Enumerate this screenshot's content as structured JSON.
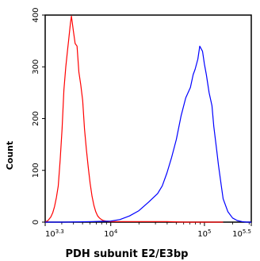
{
  "chart_data": {
    "type": "line",
    "title": "",
    "xlabel": "PDH subunit E2/E3bp",
    "ylabel": "Count",
    "xscale": "log",
    "xlim": [
      3.3,
      5.5
    ],
    "ylim": [
      0,
      400
    ],
    "grid": false,
    "y_ticks": [
      {
        "value": 0,
        "label": "0"
      },
      {
        "value": 100,
        "label": "100"
      },
      {
        "value": 200,
        "label": "200"
      },
      {
        "value": 300,
        "label": "300"
      },
      {
        "value": 400,
        "label": "400"
      }
    ],
    "x_ticks": [
      {
        "value": 3.3,
        "base": "10",
        "exp": "3.3"
      },
      {
        "value": 4,
        "base": "10",
        "exp": "4"
      },
      {
        "value": 5,
        "base": "10",
        "exp": "5"
      },
      {
        "value": 5.5,
        "base": "10",
        "exp": "5.5"
      }
    ],
    "series": [
      {
        "name": "",
        "color": "#ff0000",
        "x": [
          3.3,
          3.33,
          3.36,
          3.38,
          3.4,
          3.42,
          3.44,
          3.46,
          3.48,
          3.5,
          3.52,
          3.54,
          3.55,
          3.57,
          3.58,
          3.6,
          3.62,
          3.64,
          3.66,
          3.68,
          3.7,
          3.72,
          3.74,
          3.76,
          3.78,
          3.8,
          3.82,
          3.84,
          3.86,
          3.88,
          3.9,
          3.92,
          3.95,
          4.0,
          4.05,
          4.1,
          4.2,
          4.4,
          4.6,
          4.8,
          5.0,
          5.1,
          5.2
        ],
        "y": [
          0,
          3,
          10,
          18,
          30,
          48,
          70,
          120,
          180,
          255,
          300,
          335,
          350,
          385,
          398,
          370,
          345,
          340,
          290,
          265,
          235,
          180,
          140,
          105,
          75,
          50,
          32,
          20,
          12,
          8,
          5,
          3,
          2,
          1,
          1,
          1,
          1,
          1,
          1,
          0,
          0,
          0,
          0
        ]
      },
      {
        "name": "",
        "color": "#0000ff",
        "x": [
          3.3,
          3.5,
          3.8,
          4.0,
          4.1,
          4.2,
          4.3,
          4.4,
          4.5,
          4.55,
          4.6,
          4.65,
          4.7,
          4.75,
          4.8,
          4.85,
          4.88,
          4.9,
          4.93,
          4.95,
          4.98,
          5.0,
          5.02,
          5.05,
          5.08,
          5.1,
          5.13,
          5.15,
          5.18,
          5.2,
          5.25,
          5.3,
          5.35,
          5.4,
          5.45,
          5.5
        ],
        "y": [
          0,
          0,
          1,
          2,
          5,
          12,
          22,
          38,
          55,
          70,
          95,
          125,
          160,
          205,
          240,
          260,
          285,
          295,
          315,
          340,
          330,
          305,
          285,
          250,
          225,
          185,
          140,
          110,
          70,
          45,
          20,
          8,
          3,
          1,
          0,
          0
        ]
      }
    ]
  }
}
